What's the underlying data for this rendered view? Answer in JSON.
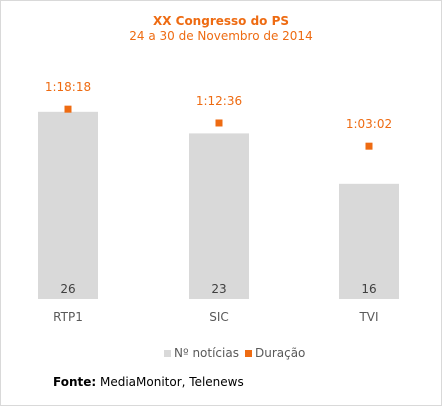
{
  "chart_data": {
    "type": "bar",
    "title": "XX Congresso do PS",
    "subtitle": "24 a 30 de Novembro de 2014",
    "categories": [
      "RTP1",
      "SIC",
      "TVI"
    ],
    "series": [
      {
        "name": "Nº notícias",
        "kind": "bar",
        "color": "#d9d9d9",
        "values": [
          26,
          23,
          16
        ],
        "labels": [
          "26",
          "23",
          "16"
        ]
      },
      {
        "name": "Duração",
        "kind": "marker",
        "color": "#ee6b12",
        "values_seconds": [
          4698,
          4356,
          3782
        ],
        "labels": [
          "1:18:18",
          "1:12:36",
          "1:03:02"
        ]
      }
    ],
    "bar_axis_range": [
      0,
      27.5
    ],
    "duration_axis_range": [
      0,
      4900
    ],
    "grid": false,
    "legend_position": "bottom"
  },
  "source": {
    "label": "Fonte:",
    "text": " MediaMonitor, Telenews"
  },
  "colors": {
    "accent": "#ee6b12",
    "bar": "#d9d9d9"
  }
}
